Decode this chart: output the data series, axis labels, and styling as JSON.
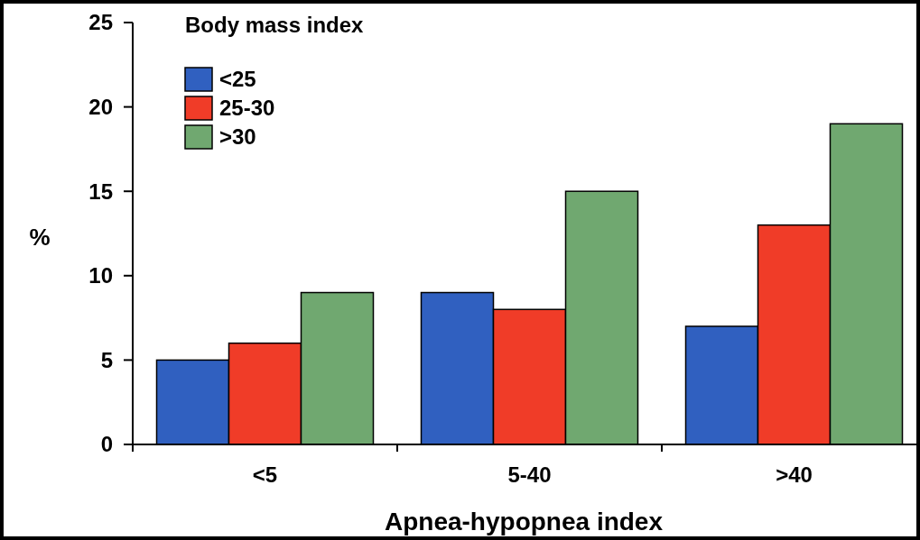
{
  "chart_data": {
    "type": "bar",
    "xlabel": "Apnea-hypopnea index",
    "ylabel": "%",
    "legend_title": "Body mass index",
    "legend": "top left",
    "categories": [
      "<5",
      "5-40",
      ">40"
    ],
    "series": [
      {
        "name": "<25",
        "color": "#3060c0",
        "values": [
          5,
          9,
          7
        ]
      },
      {
        "name": "25-30",
        "color": "#f03c28",
        "values": [
          6,
          8,
          13
        ]
      },
      {
        "name": ">30",
        "color": "#70a870",
        "values": [
          9,
          15,
          19
        ]
      }
    ],
    "ylim": [
      0,
      25
    ],
    "yticks": [
      0,
      5,
      10,
      15,
      20,
      25
    ]
  }
}
